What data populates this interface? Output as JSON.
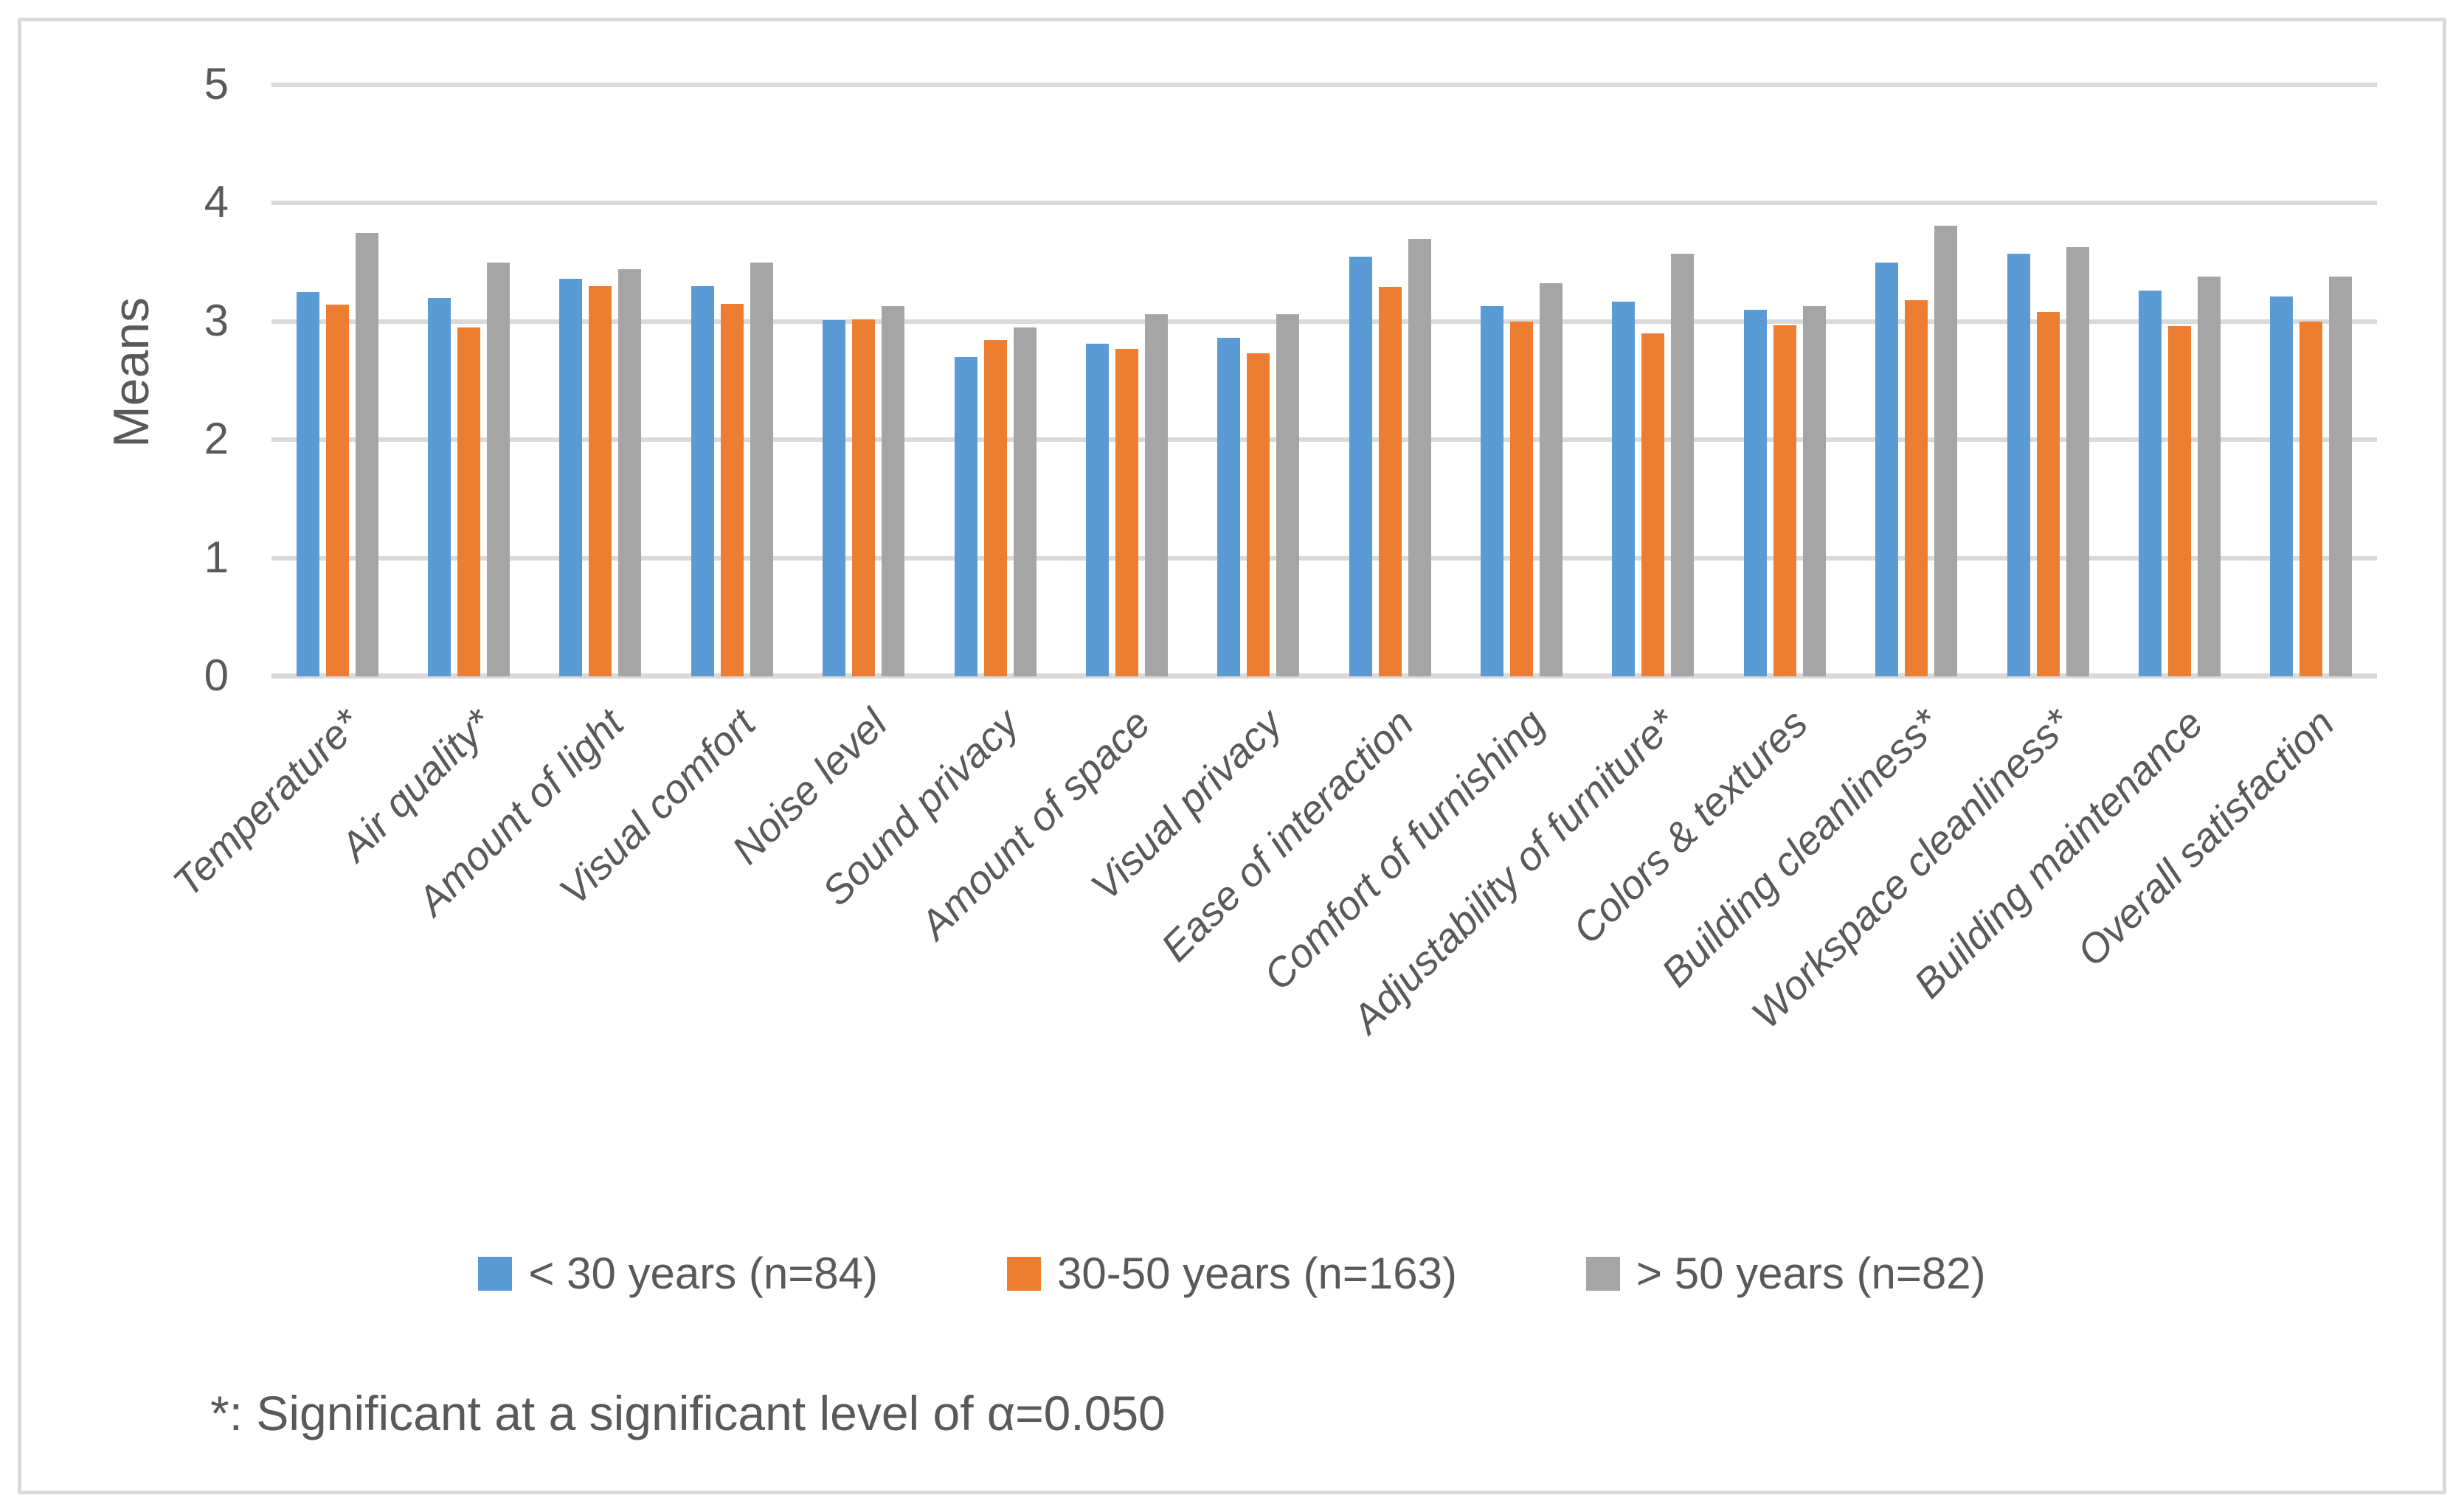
{
  "figure": {
    "footnote": "*: Significant at a significant level of α=0.050"
  },
  "style": {
    "text_color": "#595959",
    "grid_color": "#d9d9d9",
    "border_color": "#d9d9d9",
    "background": "#ffffff"
  },
  "chart_data": {
    "type": "bar",
    "title": "",
    "xlabel": "",
    "ylabel": "Means",
    "ylim": [
      0,
      5
    ],
    "ytick_step": 1,
    "yticks": [
      0,
      1,
      2,
      3,
      4,
      5
    ],
    "grid": true,
    "legend_position": "bottom-center",
    "categories": [
      "Temperature*",
      "Air quality*",
      "Amount of light",
      "Visual comfort",
      "Noise level",
      "Sound privacy",
      "Amount of space",
      "Visual privacy",
      "Ease of interaction",
      "Comfort of furnishing",
      "Adjustability of furniture*",
      "Colors & textures",
      "Building cleanliness*",
      "Workspace cleanliness*",
      "Building maintenance",
      "Overall satisfaction"
    ],
    "series": [
      {
        "name": "< 30 years (n=84)",
        "color": "#5b9bd5",
        "values": [
          3.25,
          3.2,
          3.36,
          3.3,
          3.01,
          2.7,
          2.81,
          2.86,
          3.55,
          3.13,
          3.17,
          3.1,
          3.5,
          3.57,
          3.26,
          3.21
        ]
      },
      {
        "name": "30-50 years (n=163)",
        "color": "#ed7d31",
        "values": [
          3.14,
          2.95,
          3.3,
          3.15,
          3.02,
          2.84,
          2.77,
          2.73,
          3.29,
          3.0,
          2.9,
          2.97,
          3.18,
          3.08,
          2.96,
          3.0
        ]
      },
      {
        "name": "> 50 years (n=82)",
        "color": "#a5a5a5",
        "values": [
          3.75,
          3.5,
          3.44,
          3.5,
          3.13,
          2.95,
          3.06,
          3.06,
          3.7,
          3.32,
          3.57,
          3.13,
          3.81,
          3.63,
          3.38,
          3.38
        ]
      }
    ]
  }
}
